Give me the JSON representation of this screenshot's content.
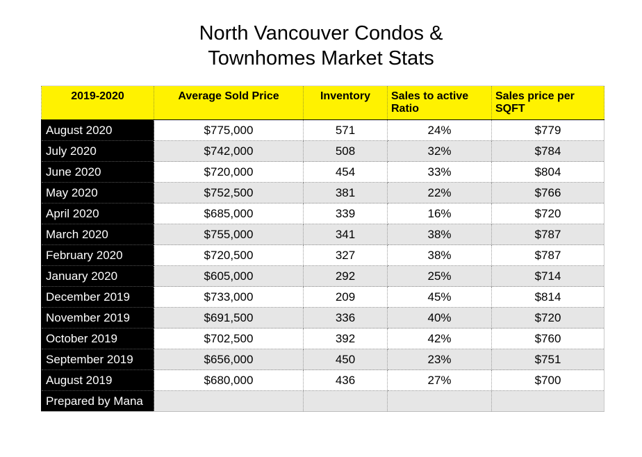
{
  "chart_data": {
    "type": "table",
    "title_line1": "North Vancouver Condos &",
    "title_line2": "Townhomes Market Stats",
    "columns": [
      "2019-2020",
      "Average Sold Price",
      "Inventory",
      "Sales to active Ratio",
      "Sales price per SQFT"
    ],
    "rows": [
      [
        "August 2020",
        "$775,000",
        "571",
        "24%",
        "$779"
      ],
      [
        "July 2020",
        "$742,000",
        "508",
        "32%",
        "$784"
      ],
      [
        "June 2020",
        "$720,000",
        "454",
        "33%",
        "$804"
      ],
      [
        "May 2020",
        "$752,500",
        "381",
        "22%",
        "$766"
      ],
      [
        "April 2020",
        "$685,000",
        "339",
        "16%",
        "$720"
      ],
      [
        "March 2020",
        "$755,000",
        "341",
        "38%",
        "$787"
      ],
      [
        "February 2020",
        "$720,500",
        "327",
        "38%",
        "$787"
      ],
      [
        "January 2020",
        "$605,000",
        "292",
        "25%",
        "$714"
      ],
      [
        "December 2019",
        "$733,000",
        "209",
        "45%",
        "$814"
      ],
      [
        "November 2019",
        "$691,500",
        "336",
        "40%",
        "$720"
      ],
      [
        "October 2019",
        "$702,500",
        "392",
        "42%",
        "$760"
      ],
      [
        "September 2019",
        "$656,000",
        "450",
        "23%",
        "$751"
      ],
      [
        "August 2019",
        "$680,000",
        "436",
        "27%",
        "$700"
      ],
      [
        "Prepared by Mana",
        "",
        "",
        "",
        ""
      ]
    ]
  },
  "colors": {
    "header_background": "#fff200",
    "month_column_background": "#000000",
    "month_column_text": "#ffffff",
    "alternate_row_background": "#e6e6e6"
  }
}
